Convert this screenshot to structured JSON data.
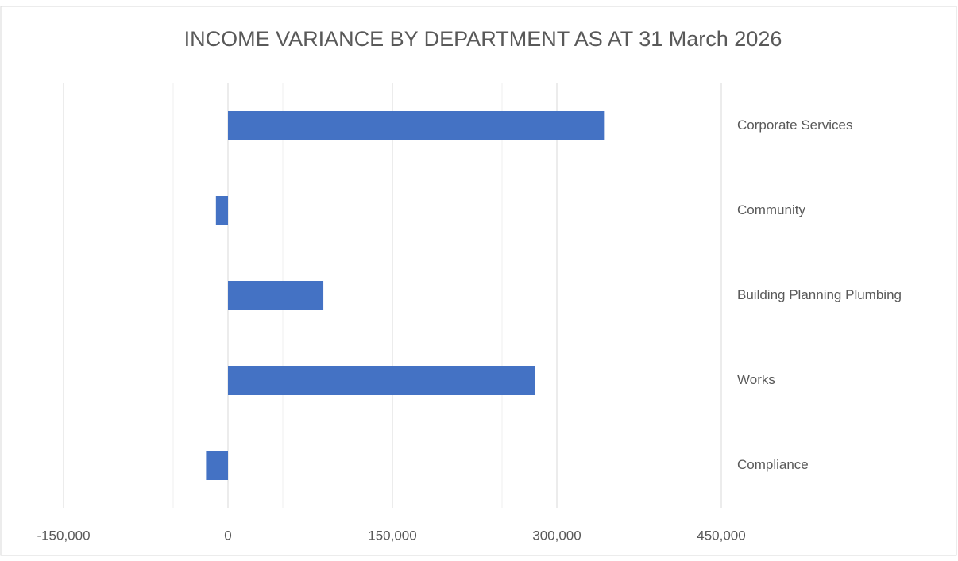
{
  "chart_data": {
    "type": "barh",
    "title": "INCOME VARIANCE BY DEPARTMENT AS AT  31 March 2026",
    "categories": [
      "Corporate Services",
      "Community",
      "Building Planning Plumbing",
      "Works",
      "Compliance"
    ],
    "values": [
      343000,
      -11000,
      87000,
      280000,
      -20000
    ],
    "color": "#4472c4",
    "xlim": [
      -150000,
      450000
    ],
    "xticks": [
      {
        "value": -150000,
        "label": "-150,000"
      },
      0,
      {
        "value": 150000,
        "label": "150,000"
      },
      {
        "value": 300000,
        "label": "300,000"
      },
      {
        "value": 450000,
        "label": "450,000"
      }
    ],
    "minor_xticks": [
      -50000,
      50000,
      250000
    ],
    "grid": true
  }
}
